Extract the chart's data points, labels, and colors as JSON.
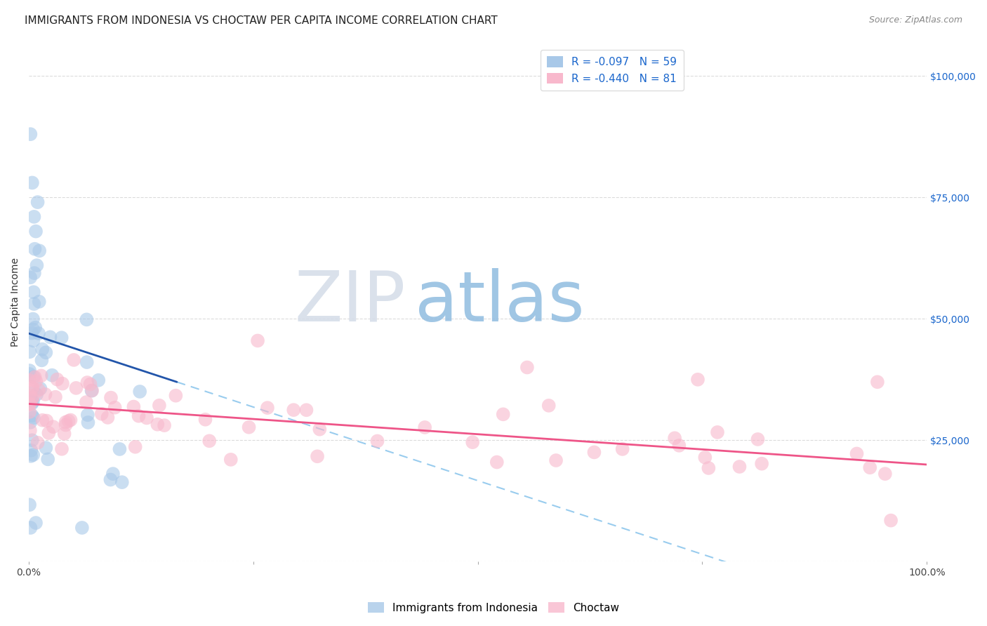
{
  "title": "IMMIGRANTS FROM INDONESIA VS CHOCTAW PER CAPITA INCOME CORRELATION CHART",
  "source": "Source: ZipAtlas.com",
  "ylabel": "Per Capita Income",
  "legend_labels": [
    "Immigrants from Indonesia",
    "Choctaw"
  ],
  "r_blue": -0.097,
  "r_pink": -0.44,
  "n_blue": 59,
  "n_pink": 81,
  "blue_scatter_color": "#a8c8e8",
  "pink_scatter_color": "#f8b8cc",
  "blue_line_color": "#2255aa",
  "pink_line_color": "#ee5588",
  "dashed_color": "#99ccee",
  "xlim": [
    0.0,
    1.0
  ],
  "ylim": [
    0,
    107000
  ],
  "yticks": [
    0,
    25000,
    50000,
    75000,
    100000
  ],
  "ytick_labels": [
    "",
    "$25,000",
    "$50,000",
    "$75,000",
    "$100,000"
  ],
  "title_fontsize": 11,
  "source_fontsize": 9,
  "watermark_text": "ZIPatlas",
  "watermark_color": "#c0d8ee",
  "background": "#ffffff",
  "grid_color": "#cccccc",
  "blue_line_x0": 0.0,
  "blue_line_y0": 47000,
  "blue_line_x1": 0.165,
  "blue_line_y1": 37000,
  "pink_line_x0": 0.0,
  "pink_line_y0": 32500,
  "pink_line_x1": 1.0,
  "pink_line_y1": 20000
}
